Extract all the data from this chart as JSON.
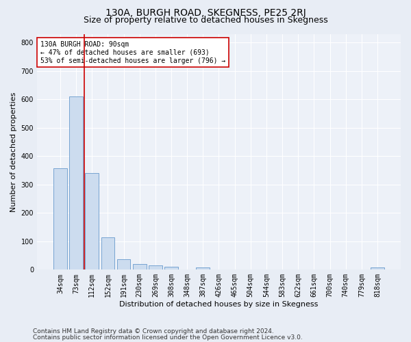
{
  "title": "130A, BURGH ROAD, SKEGNESS, PE25 2RJ",
  "subtitle": "Size of property relative to detached houses in Skegness",
  "xlabel": "Distribution of detached houses by size in Skegness",
  "ylabel": "Number of detached properties",
  "footer1": "Contains HM Land Registry data © Crown copyright and database right 2024.",
  "footer2": "Contains public sector information licensed under the Open Government Licence v3.0.",
  "bin_labels": [
    "34sqm",
    "73sqm",
    "112sqm",
    "152sqm",
    "191sqm",
    "230sqm",
    "269sqm",
    "308sqm",
    "348sqm",
    "387sqm",
    "426sqm",
    "465sqm",
    "504sqm",
    "544sqm",
    "583sqm",
    "622sqm",
    "661sqm",
    "700sqm",
    "740sqm",
    "779sqm",
    "818sqm"
  ],
  "bar_values": [
    357,
    611,
    340,
    115,
    37,
    20,
    15,
    10,
    0,
    8,
    0,
    0,
    0,
    0,
    0,
    0,
    0,
    0,
    0,
    0,
    8
  ],
  "bar_color": "#ccdcef",
  "bar_edge_color": "#6699cc",
  "vline_color": "#cc0000",
  "vline_x_data": 1.5,
  "annotation_text": "130A BURGH ROAD: 90sqm\n← 47% of detached houses are smaller (693)\n53% of semi-detached houses are larger (796) →",
  "annotation_box_facecolor": "white",
  "annotation_box_edgecolor": "#cc0000",
  "ylim": [
    0,
    830
  ],
  "yticks": [
    0,
    100,
    200,
    300,
    400,
    500,
    600,
    700,
    800
  ],
  "bg_color": "#e8edf5",
  "plot_bg_color": "#edf1f8",
  "grid_color": "white",
  "title_fontsize": 10,
  "subtitle_fontsize": 9,
  "axis_label_fontsize": 8,
  "tick_fontsize": 7,
  "annotation_fontsize": 7,
  "footer_fontsize": 6.5
}
